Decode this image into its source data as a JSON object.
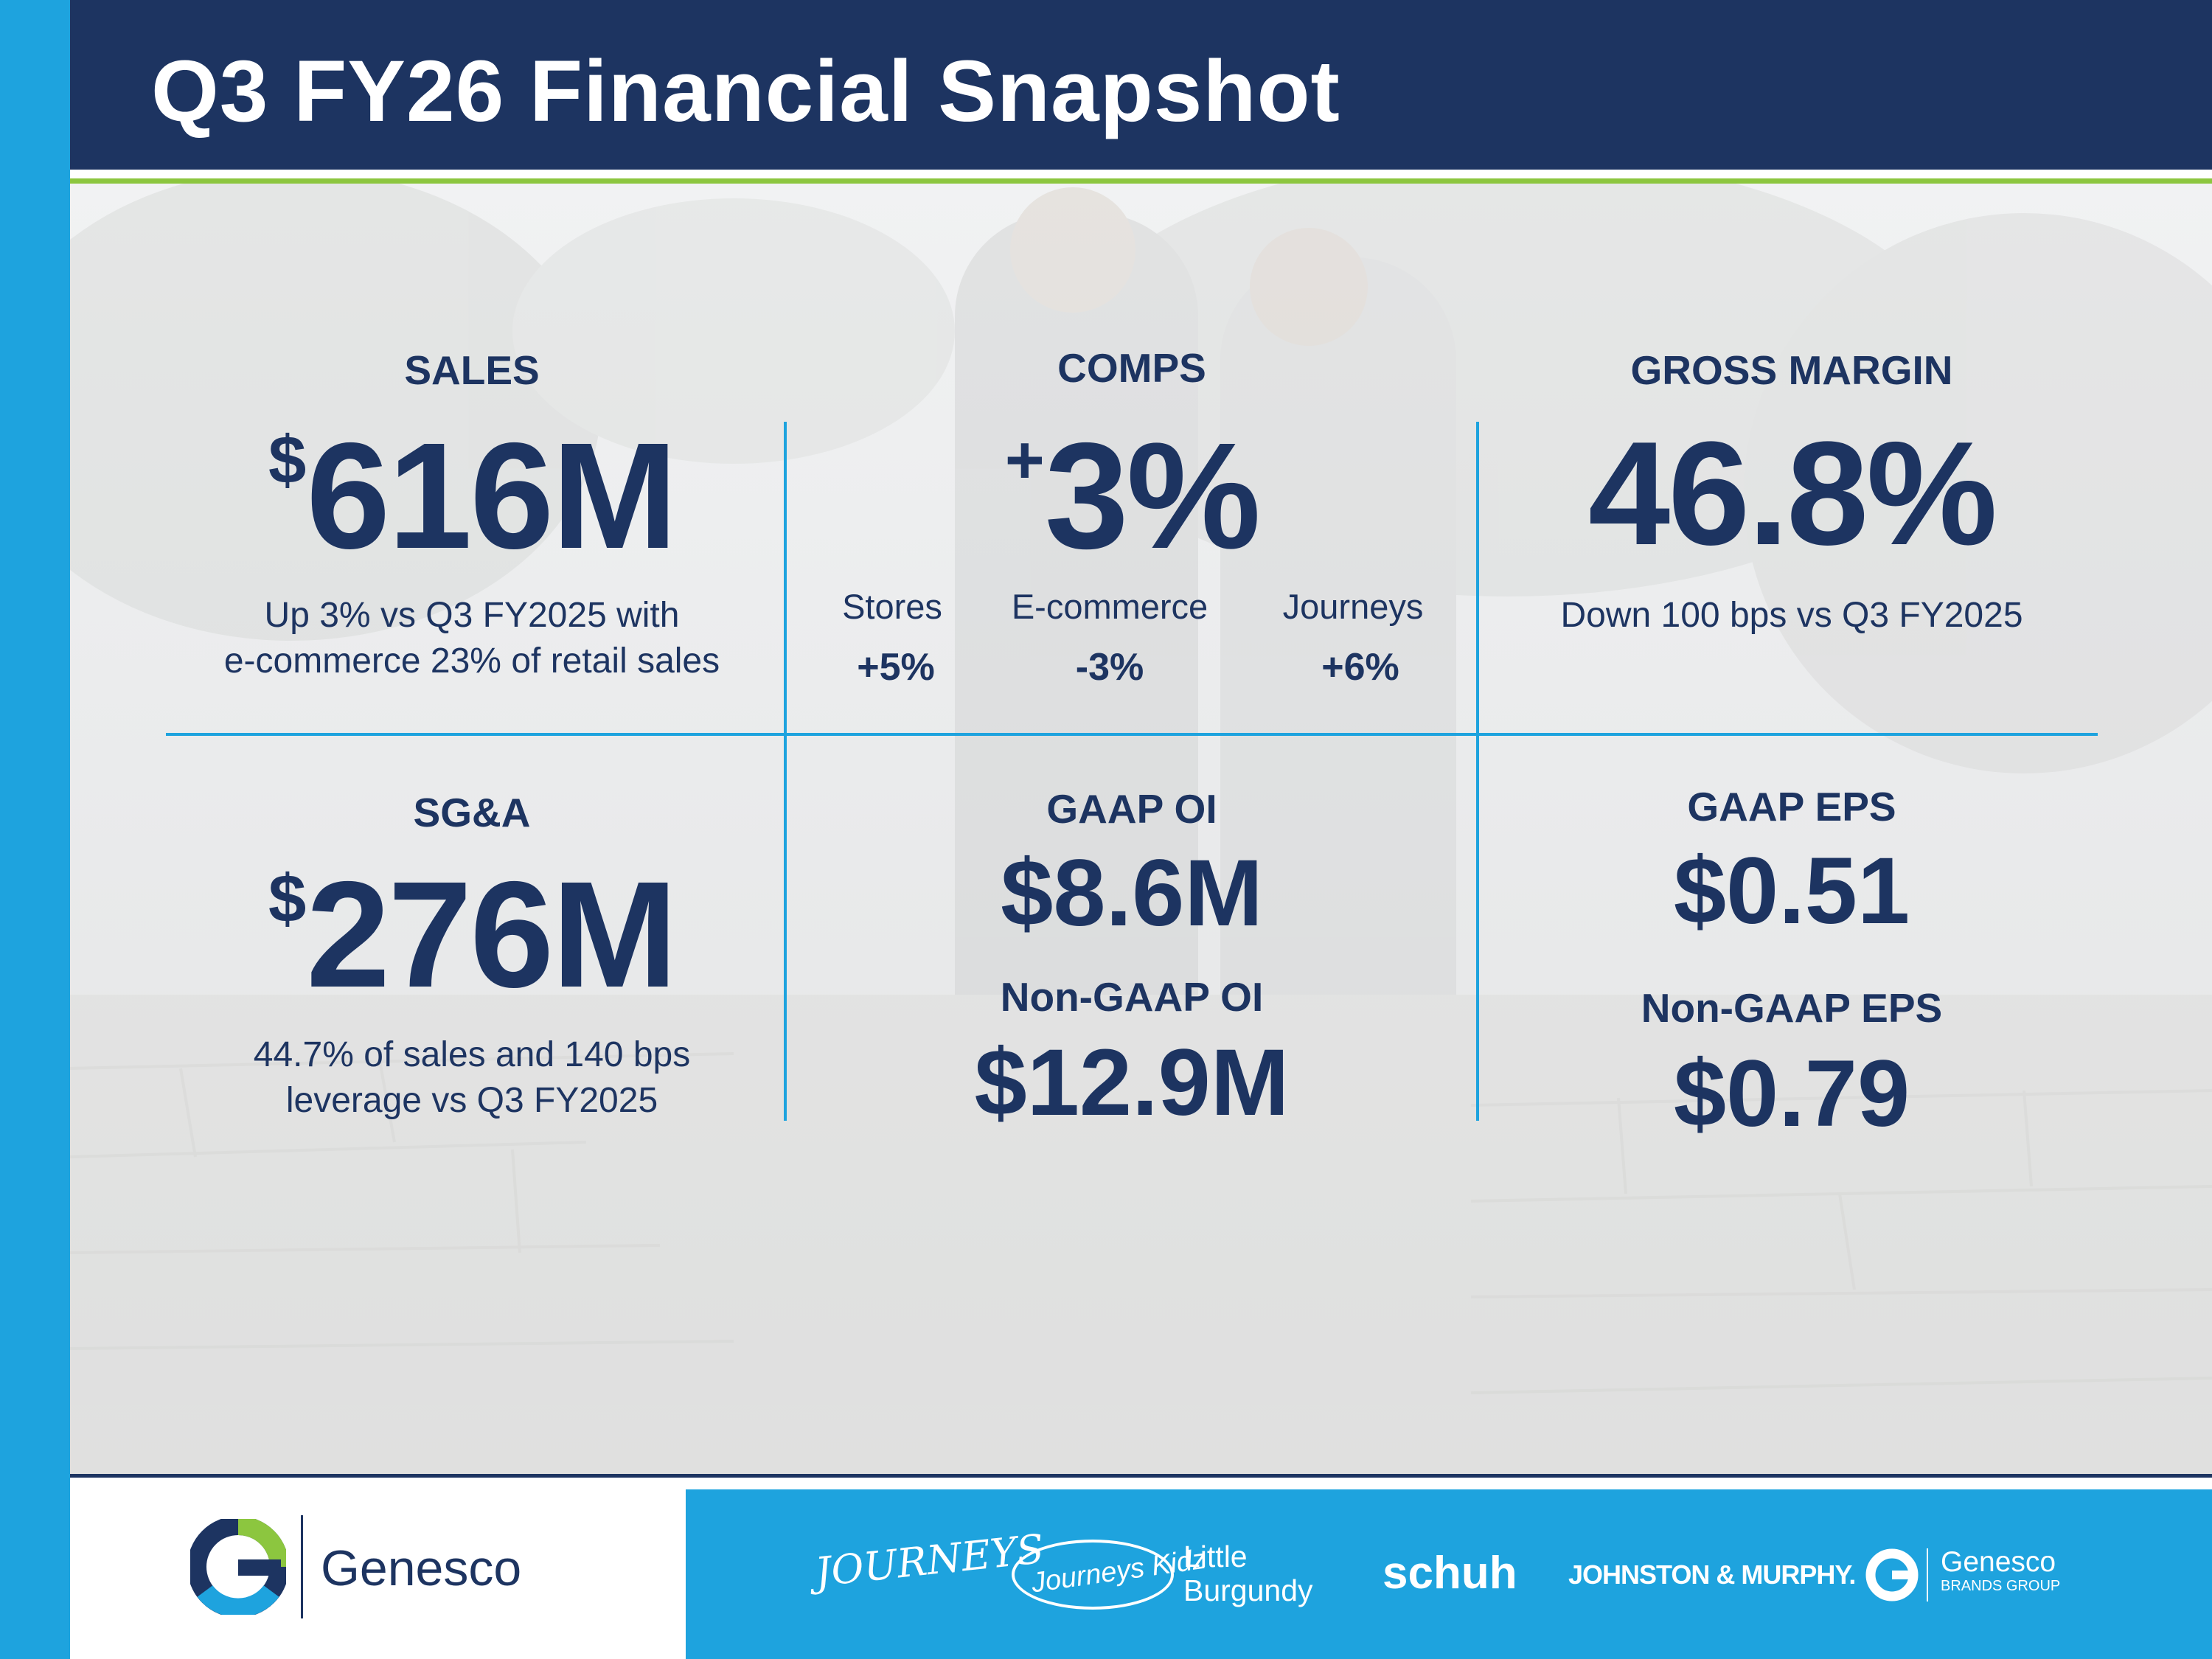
{
  "header": {
    "title": "Q3 FY26 Financial Snapshot"
  },
  "colors": {
    "navy": "#1d3461",
    "blue": "#1ea3de",
    "green": "#8cc63f",
    "white": "#ffffff"
  },
  "metrics": {
    "sales": {
      "label": "SALES",
      "prefix": "$",
      "value": "616M",
      "desc_line1": "Up 3% vs Q3 FY2025 with",
      "desc_line2": "e-commerce 23% of retail sales"
    },
    "comps": {
      "label": "COMPS",
      "prefix": "+",
      "value": "3%",
      "breakdown": [
        {
          "label": "Stores",
          "value": "+5%"
        },
        {
          "label": "E-commerce",
          "value": "-3%"
        },
        {
          "label": "Journeys",
          "value": "+6%"
        }
      ]
    },
    "gross_margin": {
      "label": "GROSS MARGIN",
      "value": "46.8%",
      "desc": "Down 100 bps vs Q3 FY2025"
    },
    "sga": {
      "label": "SG&A",
      "prefix": "$",
      "value": "276M",
      "desc_line1": "44.7% of sales and 140 bps",
      "desc_line2": "leverage vs Q3 FY2025"
    },
    "operating_income": {
      "gaap_label": "GAAP OI",
      "gaap_value": "$8.6M",
      "non_gaap_label": "Non-GAAP OI",
      "non_gaap_value": "$12.9M"
    },
    "eps": {
      "gaap_label": "GAAP EPS",
      "gaap_value": "$0.51",
      "non_gaap_label": "Non-GAAP EPS",
      "non_gaap_value": "$0.79"
    }
  },
  "footer": {
    "company_logo_text": "Genesco",
    "brands": {
      "journeys": "JOURNEYS",
      "journeys_kidz": "Journeys Kidz",
      "little_burgundy_line1": "Little",
      "little_burgundy_line2": "Burgundy",
      "schuh": "schuh",
      "johnston_murphy": "JOHNSTON & MURPHY.",
      "genesco_brands_line1": "Genesco",
      "genesco_brands_line2": "BRANDS GROUP"
    }
  }
}
